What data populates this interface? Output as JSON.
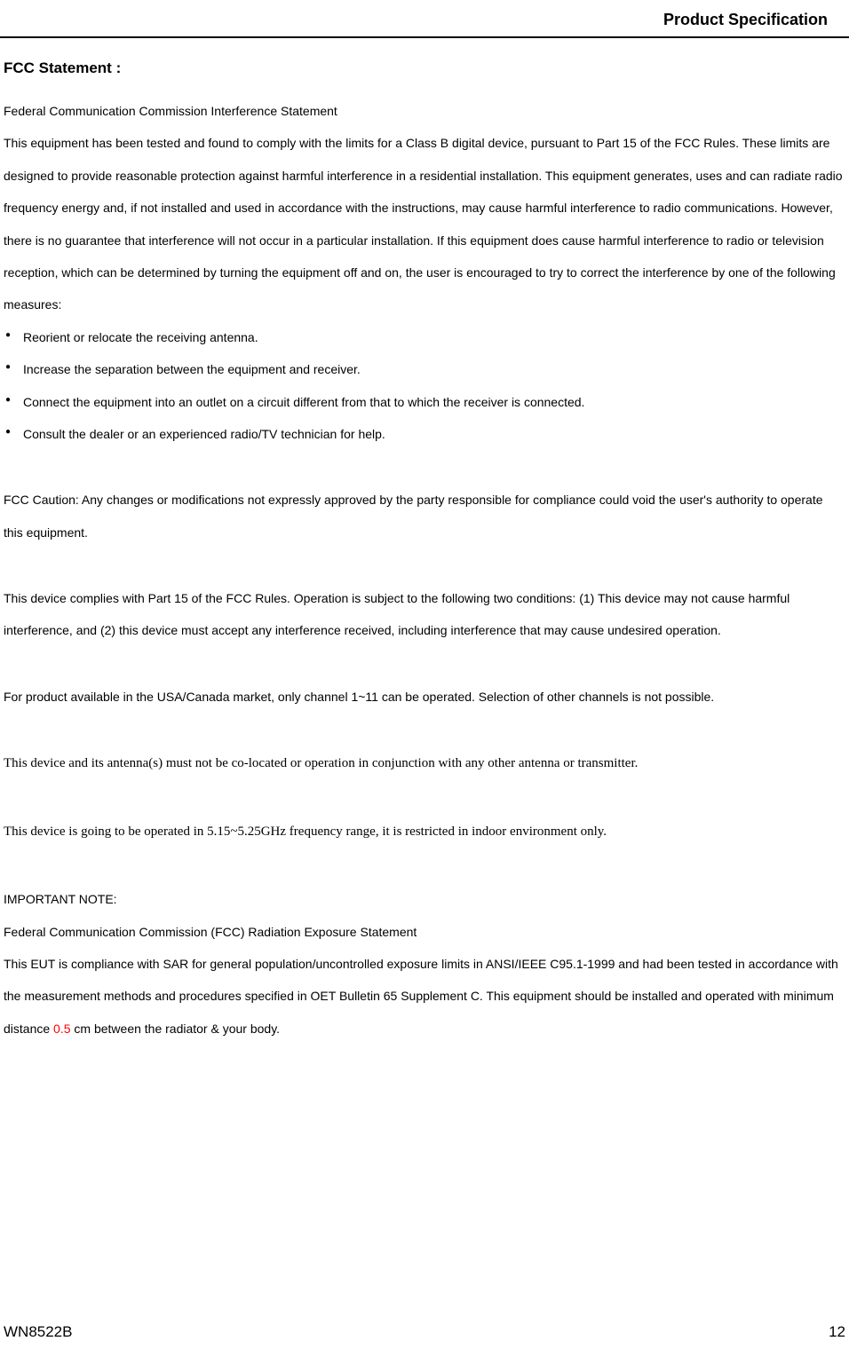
{
  "header": {
    "title": "Product Specification"
  },
  "section_title": "FCC Statement :",
  "subtitle": "Federal Communication Commission Interference Statement",
  "intro_paragraph": "This equipment has been tested and found to comply with the limits for a Class B digital device, pursuant to Part 15 of the FCC Rules. These limits are designed to provide reasonable protection against harmful interference in a residential installation. This equipment generates, uses and can radiate radio frequency energy and, if not installed and used in accordance with the instructions, may cause harmful interference to radio communications. However, there is no guarantee that interference will not occur in a particular installation. If this equipment does cause harmful interference to radio or television reception, which can be determined by turning the equipment off and on, the user is encouraged to try to correct the interference by one of the following measures:",
  "bullets": [
    "Reorient or relocate the receiving antenna.",
    "Increase the separation between the equipment and receiver.",
    "Connect the equipment into an outlet on a circuit different from that to which the receiver is connected.",
    "Consult the dealer or an experienced radio/TV technician for help."
  ],
  "caution_paragraph": "FCC Caution: Any changes or modifications not expressly approved by the party responsible for compliance could void the user's authority to operate this equipment.",
  "compliance_paragraph": "This device complies with Part 15 of the FCC Rules. Operation is subject to the following two conditions: (1) This device may not cause harmful interference, and (2) this device must accept any interference received, including interference that may cause undesired operation.",
  "channel_paragraph": "For product available in the USA/Canada market, only channel 1~11 can be operated. Selection of other channels is not possible.",
  "antenna_paragraph": "This device and its antenna(s) must not be co-located or operation in conjunction with any other antenna or transmitter.",
  "frequency_paragraph": "This device is going to be operated in 5.15~5.25GHz frequency range, it is restricted in indoor environment only.",
  "important_note_label": "IMPORTANT NOTE:",
  "radiation_subtitle": "Federal Communication Commission (FCC) Radiation Exposure Statement",
  "sar_paragraph_pre": "This EUT is compliance with SAR for general population/uncontrolled exposure limits in ANSI/IEEE C95.1-1999 and had been tested in accordance with the measurement methods and procedures specified in OET Bulletin 65 Supplement C. This equipment should be installed and operated with minimum distance ",
  "sar_value": "0.5",
  "sar_paragraph_post": " cm between the radiator & your body.",
  "footer": {
    "model": "WN8522B",
    "page": "12"
  },
  "colors": {
    "text": "#000000",
    "background": "#ffffff",
    "accent": "#ff0000"
  }
}
